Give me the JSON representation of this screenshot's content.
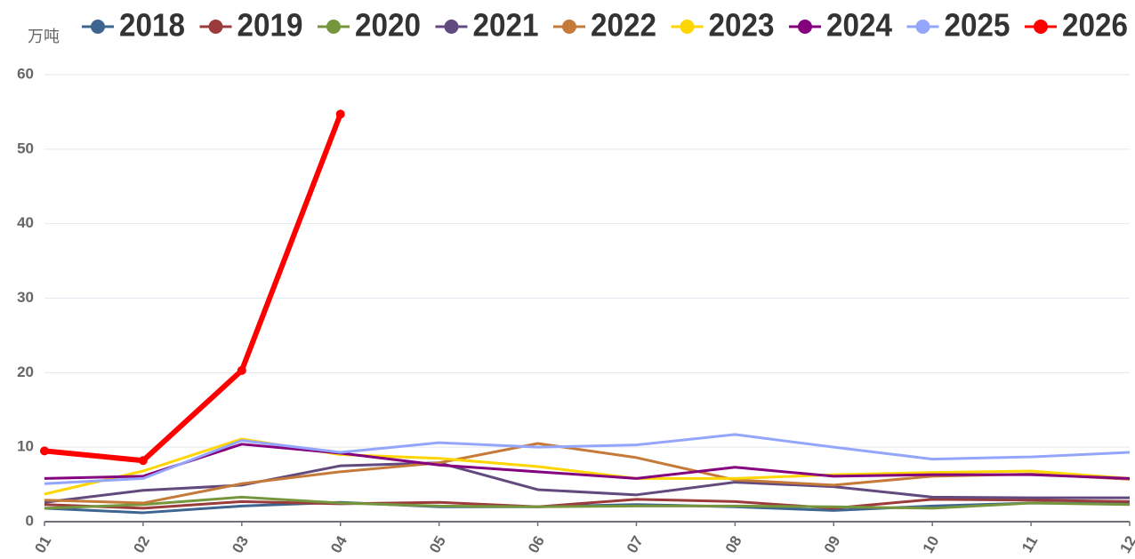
{
  "chart_data": {
    "type": "line",
    "y_axis_label": "万吨",
    "categories": [
      "01",
      "02",
      "03",
      "04",
      "05",
      "06",
      "07",
      "08",
      "09",
      "10",
      "11",
      "12"
    ],
    "ylim": [
      0,
      60
    ],
    "yticks": [
      0,
      10,
      20,
      30,
      40,
      50,
      60
    ],
    "grid": true,
    "legend": "top",
    "series": [
      {
        "name": "2018",
        "color": "#3d6590",
        "values": [
          1.8,
          1.2,
          2.1,
          2.6,
          2.0,
          2.0,
          2.3,
          2.0,
          1.5,
          2.1,
          2.5,
          2.4
        ]
      },
      {
        "name": "2019",
        "color": "#9b3b3b",
        "values": [
          2.3,
          1.8,
          2.7,
          2.4,
          2.6,
          2.0,
          3.0,
          2.7,
          1.8,
          3.0,
          2.9,
          2.7
        ]
      },
      {
        "name": "2020",
        "color": "#76963e",
        "values": [
          1.8,
          2.3,
          3.3,
          2.5,
          2.1,
          2.0,
          2.1,
          2.1,
          2.0,
          1.8,
          2.5,
          2.3
        ]
      },
      {
        "name": "2021",
        "color": "#624a7e",
        "values": [
          2.6,
          4.2,
          4.9,
          7.5,
          7.9,
          4.3,
          3.6,
          5.3,
          4.7,
          3.3,
          3.2,
          3.2
        ]
      },
      {
        "name": "2022",
        "color": "#c57a3a",
        "values": [
          2.9,
          2.5,
          5.1,
          6.7,
          7.9,
          10.5,
          8.6,
          5.6,
          4.9,
          6.1,
          6.4,
          5.7
        ]
      },
      {
        "name": "2023",
        "color": "#ffd500",
        "values": [
          3.7,
          6.8,
          11.1,
          9.0,
          8.5,
          7.4,
          5.8,
          5.8,
          6.3,
          6.6,
          6.8,
          5.8
        ]
      },
      {
        "name": "2024",
        "color": "#85007f",
        "values": [
          5.8,
          6.1,
          10.4,
          9.2,
          7.6,
          6.7,
          5.8,
          7.3,
          6.1,
          6.3,
          6.3,
          5.8
        ]
      },
      {
        "name": "2025",
        "color": "#94a6fc",
        "values": [
          5.1,
          5.8,
          10.9,
          9.3,
          10.6,
          10.0,
          10.3,
          11.7,
          10.0,
          8.4,
          8.7,
          9.3
        ]
      },
      {
        "name": "2026",
        "color": "#ff0000",
        "values": [
          9.5,
          8.2,
          20.3,
          54.7,
          null,
          null,
          null,
          null,
          null,
          null,
          null,
          null
        ]
      }
    ]
  }
}
